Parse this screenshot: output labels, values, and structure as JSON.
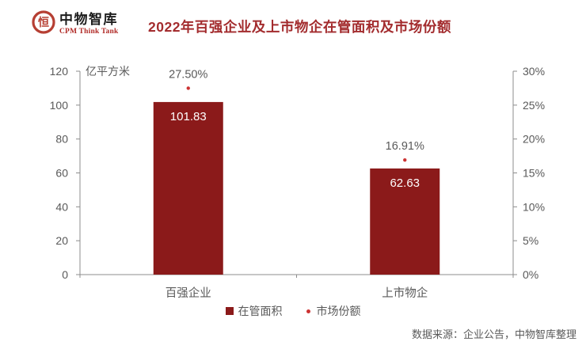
{
  "header": {
    "logo_cn": "中物智库",
    "logo_en": "CPM Think Tank",
    "title": "2022年百强企业及上市物企在管面积及市场份额"
  },
  "chart_data": {
    "type": "bar",
    "categories": [
      "百强企业",
      "上市物企"
    ],
    "series": [
      {
        "name": "在管面积",
        "type": "bar",
        "axis": "left",
        "values": [
          101.83,
          62.63
        ],
        "labels": [
          "101.83",
          "62.63"
        ],
        "color": "#8b1a1a"
      },
      {
        "name": "市场份额",
        "type": "scatter",
        "axis": "right",
        "values": [
          27.5,
          16.91
        ],
        "labels": [
          "27.50%",
          "16.91%"
        ],
        "color": "#cc3333"
      }
    ],
    "left_axis": {
      "unit": "亿平方米",
      "min": 0,
      "max": 120,
      "step": 20,
      "tick_labels": [
        "0",
        "20",
        "40",
        "60",
        "80",
        "100",
        "120"
      ]
    },
    "right_axis": {
      "min": 0,
      "max": 30,
      "step": 5,
      "tick_labels": [
        "0%",
        "5%",
        "10%",
        "15%",
        "20%",
        "25%",
        "30%"
      ]
    },
    "legend_position": "bottom",
    "grid": false
  },
  "footer": {
    "source": "数据来源：企业公告，中物智库整理"
  },
  "colors": {
    "bar": "#8b1a1a",
    "marker": "#cc3333",
    "title": "#a32c2e",
    "logo_red": "#b02a26",
    "axis_line": "#8c8c8c",
    "axis_text": "#595959",
    "bar_label": "#ffffff"
  }
}
